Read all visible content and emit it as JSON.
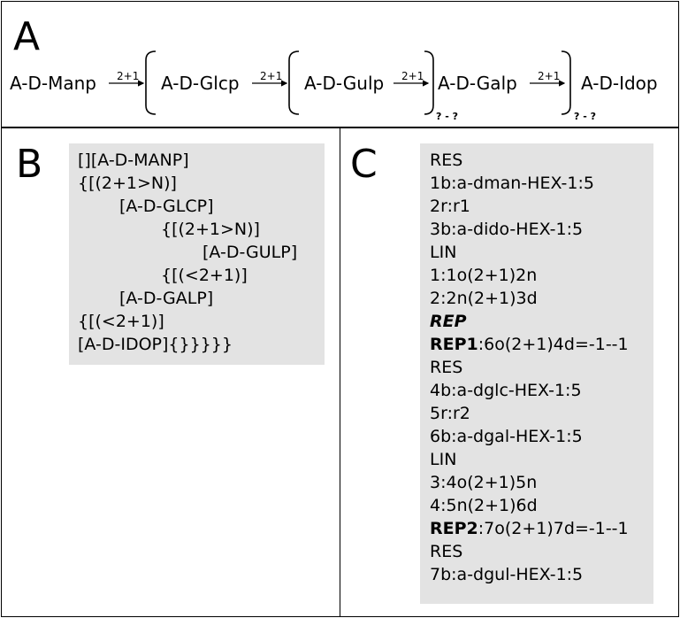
{
  "panel_a": {
    "letter": "A",
    "nodes": [
      "A-D-Manp",
      "A-D-Glcp",
      "A-D-Gulp",
      "A-D-Galp",
      "A-D-Idop"
    ],
    "links": [
      "2+1",
      "2+1",
      "2+1",
      "2+1"
    ],
    "rep_labels": [
      "? - ?",
      "? - ?"
    ]
  },
  "panel_b": {
    "letter": "B",
    "lines": [
      {
        "text": "[][A-D-MANP]",
        "indent": 0
      },
      {
        "text": "{[(2+1>N)]",
        "indent": 0
      },
      {
        "text": "[A-D-GLCP]",
        "indent": 1
      },
      {
        "text": "{[(2+1>N)]",
        "indent": 2
      },
      {
        "text": "[A-D-GULP]",
        "indent": 3
      },
      {
        "text": "{[(<2+1)]",
        "indent": 2
      },
      {
        "text": "[A-D-GALP]",
        "indent": 1
      },
      {
        "text": "{[(<2+1)]",
        "indent": 0
      },
      {
        "text": "[A-D-IDOP]{}}}}}",
        "indent": 0
      }
    ]
  },
  "panel_c": {
    "letter": "C",
    "lines": [
      {
        "text": "RES",
        "bold": "",
        "style": "normal"
      },
      {
        "text": "1b:a-dman-HEX-1:5",
        "bold": "",
        "style": "normal"
      },
      {
        "text": "2r:r1",
        "bold": "",
        "style": "normal"
      },
      {
        "text": "3b:a-dido-HEX-1:5",
        "bold": "",
        "style": "normal"
      },
      {
        "text": "LIN",
        "bold": "",
        "style": "normal"
      },
      {
        "text": "1:1o(2+1)2n",
        "bold": "",
        "style": "normal"
      },
      {
        "text": "2:2n(2+1)3d",
        "bold": "",
        "style": "normal"
      },
      {
        "text": "",
        "bold": "REP",
        "style": "bolditalic"
      },
      {
        "text": ":6o(2+1)4d=-1--1",
        "bold": "REP1",
        "style": "bold"
      },
      {
        "text": "RES",
        "bold": "",
        "style": "normal"
      },
      {
        "text": "4b:a-dglc-HEX-1:5",
        "bold": "",
        "style": "normal"
      },
      {
        "text": "5r:r2",
        "bold": "",
        "style": "normal"
      },
      {
        "text": "6b:a-dgal-HEX-1:5",
        "bold": "",
        "style": "normal"
      },
      {
        "text": "LIN",
        "bold": "",
        "style": "normal"
      },
      {
        "text": "3:4o(2+1)5n",
        "bold": "",
        "style": "normal"
      },
      {
        "text": "4:5n(2+1)6d",
        "bold": "",
        "style": "normal"
      },
      {
        "text": ":7o(2+1)7d=-1--1",
        "bold": "REP2",
        "style": "bold"
      },
      {
        "text": "RES",
        "bold": "",
        "style": "normal"
      },
      {
        "text": "7b:a-dgul-HEX-1:5",
        "bold": "",
        "style": "normal"
      }
    ]
  }
}
